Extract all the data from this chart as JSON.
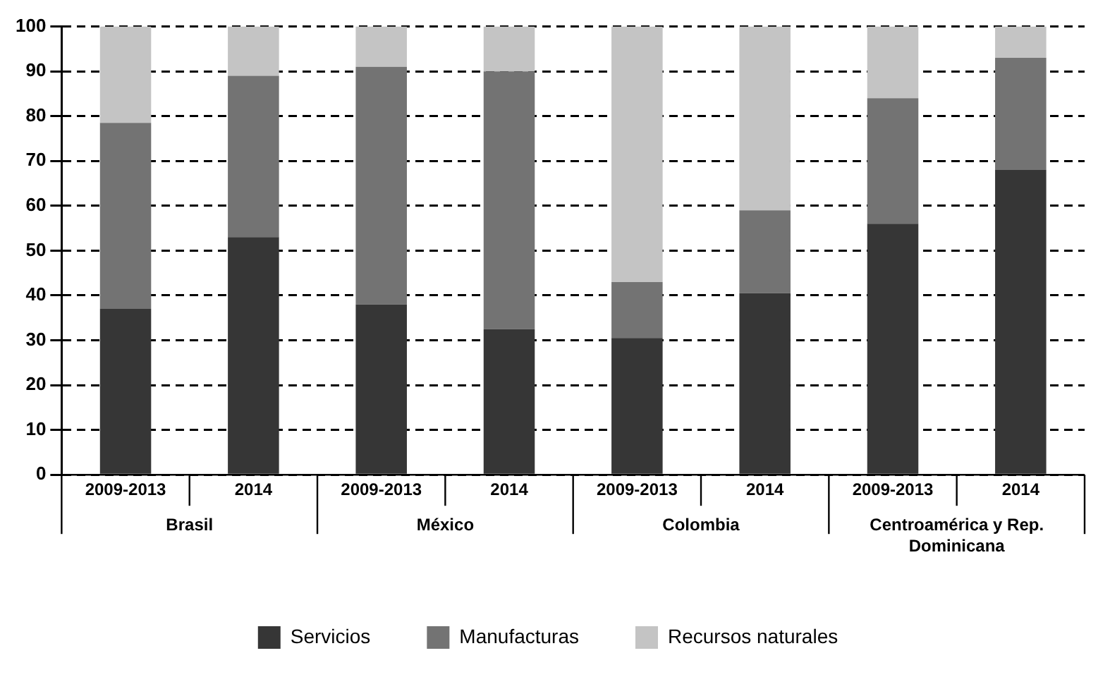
{
  "chart_data": {
    "type": "bar",
    "stacked": true,
    "categories": [
      "2009-2013",
      "2014",
      "2009-2013",
      "2014",
      "2009-2013",
      "2014",
      "2009-2013",
      "2014"
    ],
    "series": [
      {
        "name": "Servicios",
        "color": "#363636",
        "values": [
          37,
          53,
          38,
          32.5,
          30.5,
          40.5,
          56,
          68
        ]
      },
      {
        "name": "Manufacturas",
        "color": "#737373",
        "values": [
          41.5,
          36,
          53,
          57.5,
          12.5,
          18.5,
          28,
          25
        ]
      },
      {
        "name": "Recursos naturales",
        "color": "#c4c4c4",
        "values": [
          21.5,
          11,
          9,
          10,
          57,
          41,
          16,
          7
        ]
      }
    ],
    "annotations": [
      "Brasil",
      "México",
      "Colombia",
      "Centroamérica y Rep. Dominicana"
    ],
    "ylim": [
      0,
      100
    ],
    "yticks": [
      0,
      10,
      20,
      30,
      40,
      50,
      60,
      70,
      80,
      90,
      100
    ],
    "grid": "y",
    "legend": "bottom"
  }
}
